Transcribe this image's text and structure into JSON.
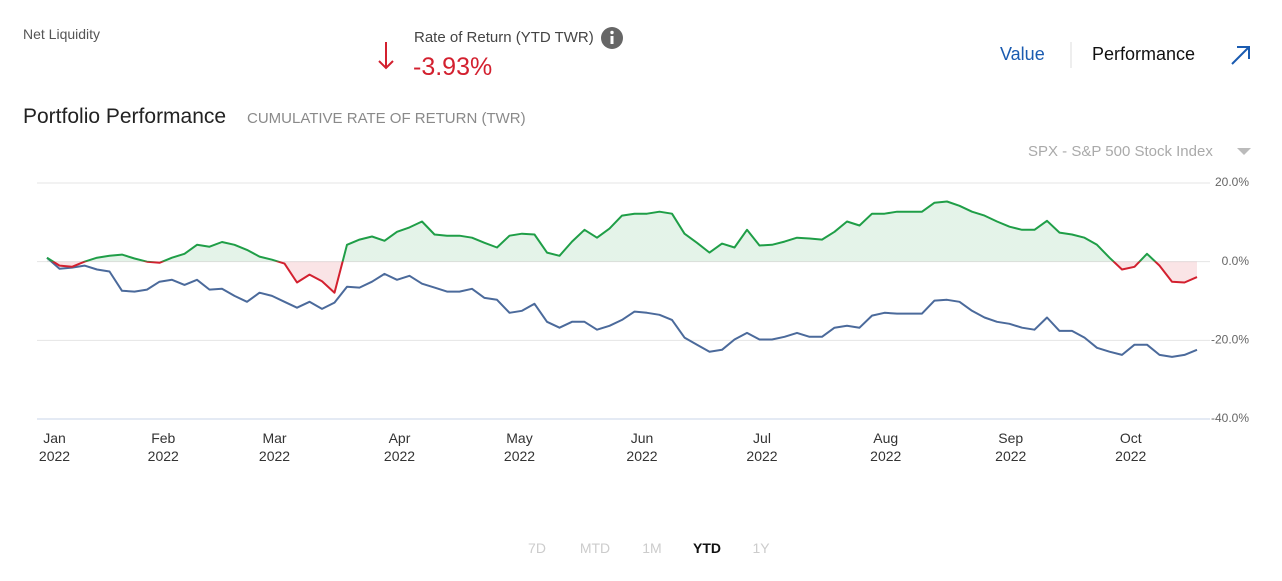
{
  "header": {
    "net_liquidity": "Net Liquidity",
    "rate_label": "Rate of Return (YTD TWR)",
    "rate_value": "-3.93%",
    "tabs": [
      "Value",
      "Performance"
    ]
  },
  "time_ranges": [
    "7D",
    "MTD",
    "1M",
    "YTD",
    "1Y"
  ],
  "chart_data": {
    "type": "line",
    "title": "Portfolio Performance",
    "subtitle": "CUMULATIVE RATE OF RETURN (TWR)",
    "series": [
      {
        "color": "#1f9e47",
        "negative_color": "#d3202f",
        "fill": true,
        "values": [
          1,
          -1,
          -1.3,
          0,
          1,
          1.5,
          1.8,
          0.8,
          0,
          -0.3,
          1,
          2,
          4.3,
          3.8,
          5,
          4.3,
          3,
          1.3,
          0.5,
          -0.5,
          -5.3,
          -3.3,
          -5,
          -7.9,
          4.3,
          5.6,
          6.4,
          5.3,
          7.6,
          8.7,
          10.2,
          6.9,
          6.6,
          6.6,
          6.1,
          4.8,
          3.6,
          6.6,
          7.1,
          6.9,
          2.3,
          1.5,
          5.1,
          8.1,
          6.1,
          8.4,
          11.7,
          12.2,
          12.2,
          12.7,
          12.2,
          7.1,
          4.8,
          2.3,
          4.6,
          3.6,
          8.1,
          4.1,
          4.3,
          5.1,
          6.1,
          5.9,
          5.6,
          7.6,
          10.2,
          9.2,
          12.2,
          12.2,
          12.7,
          12.7,
          12.7,
          15,
          15.3,
          14.2,
          12.7,
          11.7,
          10.2,
          8.9,
          8.1,
          8.1,
          10.4,
          7.4,
          6.9,
          6.1,
          4.3,
          1,
          -2,
          -1.3,
          2,
          -1,
          -5.1,
          -5.3,
          -3.93
        ]
      },
      {
        "name": "SPX - S&P 500 Stock Index",
        "color": "#4b6a9b",
        "values": [
          1,
          -1.8,
          -1.5,
          -1,
          -2,
          -2.5,
          -7.4,
          -7.6,
          -7.1,
          -5.1,
          -4.6,
          -5.9,
          -4.6,
          -7.1,
          -6.9,
          -8.7,
          -10.2,
          -7.9,
          -8.7,
          -10.2,
          -11.7,
          -10.2,
          -12,
          -10.4,
          -6.4,
          -6.6,
          -5.1,
          -3.1,
          -4.6,
          -3.6,
          -5.6,
          -6.6,
          -7.6,
          -7.6,
          -6.9,
          -9.2,
          -9.7,
          -13,
          -12.5,
          -10.7,
          -15.3,
          -16.8,
          -15.3,
          -15.3,
          -17.3,
          -16.3,
          -14.8,
          -12.7,
          -13,
          -13.5,
          -14.8,
          -19.3,
          -21.1,
          -22.9,
          -22.4,
          -19.8,
          -18.1,
          -19.8,
          -19.8,
          -19.1,
          -18.1,
          -19.1,
          -19.1,
          -16.8,
          -16.3,
          -16.8,
          -13.7,
          -13,
          -13.2,
          -13.2,
          -13.2,
          -9.9,
          -9.7,
          -10.2,
          -12.5,
          -14.2,
          -15.3,
          -15.8,
          -16.8,
          -17.3,
          -14.2,
          -17.6,
          -17.6,
          -19.3,
          -21.9,
          -22.9,
          -23.7,
          -21.1,
          -21.1,
          -23.7,
          -24.2,
          -23.7,
          -22.4
        ]
      }
    ],
    "xticks": [
      {
        "value": 0.6,
        "label": "Jan 2022"
      },
      {
        "value": 9.3,
        "label": "Feb 2022"
      },
      {
        "value": 18.2,
        "label": "Mar 2022"
      },
      {
        "value": 28.2,
        "label": "Apr 2022"
      },
      {
        "value": 37.8,
        "label": "May 2022"
      },
      {
        "value": 47.6,
        "label": "Jun 2022"
      },
      {
        "value": 57.2,
        "label": "Jul 2022"
      },
      {
        "value": 67.1,
        "label": "Aug 2022"
      },
      {
        "value": 77.1,
        "label": "Sep 2022"
      },
      {
        "value": 86.7,
        "label": "Oct 2022"
      }
    ],
    "ylim": [
      -40,
      20
    ],
    "yticks": [
      {
        "value": 20,
        "label": "20.0%"
      },
      {
        "value": 0,
        "label": "0.0%"
      },
      {
        "value": -20,
        "label": "-20.0%"
      },
      {
        "value": -40,
        "label": "-40.0%"
      }
    ],
    "grid": true
  }
}
